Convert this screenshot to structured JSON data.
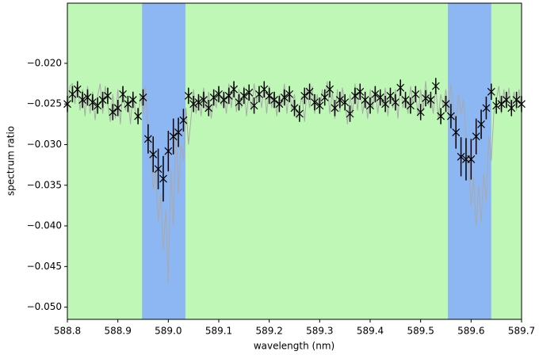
{
  "chart_data": {
    "type": "errorbar",
    "xlabel": "wavelength (nm)",
    "ylabel": "spectrum ratio",
    "xlim": [
      588.8,
      589.7
    ],
    "ylim": [
      -0.0515,
      -0.0126
    ],
    "xticks": [
      588.8,
      588.9,
      {
        "value": 589,
        "label": "589.0"
      },
      589.1,
      589.2,
      589.3,
      589.4,
      589.5,
      589.6,
      589.7
    ],
    "yticks": [
      {
        "value": -0.05,
        "label": "−0.050"
      },
      {
        "value": -0.045,
        "label": "−0.045"
      },
      {
        "value": -0.04,
        "label": "−0.040"
      },
      {
        "value": -0.035,
        "label": "−0.035"
      },
      {
        "value": -0.03,
        "label": "−0.030"
      },
      {
        "value": -0.025,
        "label": "−0.025"
      },
      {
        "value": -0.02,
        "label": "−0.020"
      }
    ],
    "background_color": "#bff7b7",
    "regions": [
      {
        "x": [
          588.948,
          589.034
        ],
        "color": "#8db7f3"
      },
      {
        "x": [
          589.554,
          589.64
        ],
        "color": "#8db7f3"
      }
    ],
    "series": [
      {
        "type": "line",
        "color": "#a9a9a9",
        "x": [
          588.8,
          588.805,
          588.81,
          588.815,
          588.82,
          588.825,
          588.83,
          588.835,
          588.84,
          588.845,
          588.85,
          588.855,
          588.86,
          588.865,
          588.87,
          588.875,
          588.88,
          588.885,
          588.89,
          588.895,
          588.9,
          588.905,
          588.91,
          588.915,
          588.92,
          588.925,
          588.93,
          588.935,
          588.94,
          588.945,
          588.95,
          588.955,
          588.96,
          588.965,
          588.97,
          588.975,
          588.98,
          588.985,
          588.99,
          588.995,
          589.0,
          589.005,
          589.01,
          589.015,
          589.02,
          589.025,
          589.03,
          589.035,
          589.04,
          589.045,
          589.05,
          589.055,
          589.06,
          589.065,
          589.07,
          589.075,
          589.08,
          589.085,
          589.09,
          589.095,
          589.1,
          589.105,
          589.11,
          589.115,
          589.12,
          589.125,
          589.13,
          589.135,
          589.14,
          589.145,
          589.15,
          589.155,
          589.16,
          589.165,
          589.17,
          589.175,
          589.18,
          589.185,
          589.19,
          589.195,
          589.2,
          589.205,
          589.21,
          589.215,
          589.22,
          589.225,
          589.23,
          589.235,
          589.24,
          589.245,
          589.25,
          589.255,
          589.26,
          589.265,
          589.27,
          589.275,
          589.28,
          589.285,
          589.29,
          589.295,
          589.3,
          589.305,
          589.31,
          589.315,
          589.32,
          589.325,
          589.33,
          589.335,
          589.34,
          589.345,
          589.35,
          589.355,
          589.36,
          589.365,
          589.37,
          589.375,
          589.38,
          589.385,
          589.39,
          589.395,
          589.4,
          589.405,
          589.41,
          589.415,
          589.42,
          589.425,
          589.43,
          589.435,
          589.44,
          589.445,
          589.45,
          589.455,
          589.46,
          589.465,
          589.47,
          589.475,
          589.48,
          589.485,
          589.49,
          589.495,
          589.5,
          589.505,
          589.51,
          589.515,
          589.52,
          589.525,
          589.53,
          589.535,
          589.54,
          589.545,
          589.55,
          589.555,
          589.56,
          589.565,
          589.57,
          589.575,
          589.58,
          589.585,
          589.59,
          589.595,
          589.6,
          589.605,
          589.61,
          589.615,
          589.62,
          589.625,
          589.63,
          589.635,
          589.64,
          589.645,
          589.65,
          589.655,
          589.66,
          589.665,
          589.67,
          589.675,
          589.68,
          589.685,
          589.69,
          589.695,
          589.7
        ],
        "values": [
          -0.0262,
          -0.0228,
          -0.0225,
          -0.025,
          -0.0222,
          -0.0258,
          -0.0232,
          -0.0265,
          -0.0228,
          -0.0262,
          -0.0235,
          -0.027,
          -0.024,
          -0.0225,
          -0.0262,
          -0.0228,
          -0.025,
          -0.0272,
          -0.0238,
          -0.0268,
          -0.0232,
          -0.0275,
          -0.0228,
          -0.0258,
          -0.0242,
          -0.0275,
          -0.0235,
          -0.026,
          -0.0272,
          -0.0238,
          -0.0262,
          -0.0228,
          -0.029,
          -0.03,
          -0.0355,
          -0.033,
          -0.0395,
          -0.036,
          -0.043,
          -0.038,
          -0.047,
          -0.033,
          -0.04,
          -0.028,
          -0.036,
          -0.03,
          -0.032,
          -0.0255,
          -0.03,
          -0.0268,
          -0.0232,
          -0.0262,
          -0.0238,
          -0.0265,
          -0.023,
          -0.0258,
          -0.0235,
          -0.0268,
          -0.024,
          -0.0255,
          -0.0228,
          -0.0252,
          -0.0236,
          -0.0262,
          -0.0225,
          -0.0255,
          -0.0222,
          -0.026,
          -0.0232,
          -0.0255,
          -0.0228,
          -0.0265,
          -0.0235,
          -0.0258,
          -0.0225,
          -0.0248,
          -0.023,
          -0.0255,
          -0.0228,
          -0.0262,
          -0.0228,
          -0.0255,
          -0.0235,
          -0.0265,
          -0.0238,
          -0.0252,
          -0.0225,
          -0.0262,
          -0.023,
          -0.0258,
          -0.0238,
          -0.0268,
          -0.0255,
          -0.024,
          -0.0272,
          -0.023,
          -0.0255,
          -0.0228,
          -0.0262,
          -0.0238,
          -0.0258,
          -0.0232,
          -0.0248,
          -0.0222,
          -0.0262,
          -0.0235,
          -0.0268,
          -0.0232,
          -0.026,
          -0.023,
          -0.0248,
          -0.0275,
          -0.0238,
          -0.0262,
          -0.0225,
          -0.0258,
          -0.0228,
          -0.0262,
          -0.024,
          -0.0268,
          -0.0232,
          -0.0255,
          -0.0228,
          -0.0262,
          -0.0235,
          -0.0252,
          -0.023,
          -0.0265,
          -0.0238,
          -0.0255,
          -0.0232,
          -0.0268,
          -0.0225,
          -0.0255,
          -0.0238,
          -0.0262,
          -0.0228,
          -0.025,
          -0.0235,
          -0.0265,
          -0.0232,
          -0.0258,
          -0.0222,
          -0.0252,
          -0.0238,
          -0.0262,
          -0.0228,
          -0.0268,
          -0.0238,
          -0.0255,
          -0.0232,
          -0.0262,
          -0.0225,
          -0.0258,
          -0.0275,
          -0.0238,
          -0.0262,
          -0.0245,
          -0.029,
          -0.032,
          -0.0375,
          -0.034,
          -0.04,
          -0.035,
          -0.0395,
          -0.0335,
          -0.037,
          -0.029,
          -0.032,
          -0.0262,
          -0.0245,
          -0.0228,
          -0.0262,
          -0.0232,
          -0.0255,
          -0.023,
          -0.0262,
          -0.0235,
          -0.0258,
          -0.0232,
          -0.0262
        ]
      },
      {
        "type": "errorbar",
        "color": "#000000",
        "x": [
          588.8,
          588.81,
          588.82,
          588.83,
          588.84,
          588.85,
          588.86,
          588.87,
          588.88,
          588.89,
          588.9,
          588.91,
          588.92,
          588.93,
          588.94,
          588.95,
          588.96,
          588.97,
          588.98,
          588.99,
          589.0,
          589.01,
          589.02,
          589.03,
          589.04,
          589.05,
          589.06,
          589.07,
          589.08,
          589.09,
          589.1,
          589.11,
          589.12,
          589.13,
          589.14,
          589.15,
          589.16,
          589.17,
          589.18,
          589.19,
          589.2,
          589.21,
          589.22,
          589.23,
          589.24,
          589.25,
          589.26,
          589.27,
          589.28,
          589.29,
          589.3,
          589.31,
          589.32,
          589.33,
          589.34,
          589.35,
          589.36,
          589.37,
          589.38,
          589.39,
          589.4,
          589.41,
          589.42,
          589.43,
          589.44,
          589.45,
          589.46,
          589.47,
          589.48,
          589.49,
          589.5,
          589.51,
          589.52,
          589.53,
          589.54,
          589.55,
          589.56,
          589.57,
          589.58,
          589.59,
          589.6,
          589.61,
          589.62,
          589.63,
          589.64,
          589.65,
          589.66,
          589.67,
          589.68,
          589.69,
          589.7
        ],
        "values": [
          -0.025,
          -0.0238,
          -0.0232,
          -0.0245,
          -0.0242,
          -0.0248,
          -0.0252,
          -0.0245,
          -0.024,
          -0.026,
          -0.0255,
          -0.0238,
          -0.025,
          -0.0245,
          -0.0265,
          -0.0242,
          -0.0293,
          -0.0312,
          -0.033,
          -0.0342,
          -0.0308,
          -0.029,
          -0.0285,
          -0.027,
          -0.024,
          -0.025,
          -0.0248,
          -0.0245,
          -0.0255,
          -0.0242,
          -0.0238,
          -0.0245,
          -0.024,
          -0.0232,
          -0.0248,
          -0.024,
          -0.0236,
          -0.0252,
          -0.0238,
          -0.0232,
          -0.024,
          -0.0245,
          -0.025,
          -0.0242,
          -0.0238,
          -0.0255,
          -0.0262,
          -0.024,
          -0.0235,
          -0.0248,
          -0.0252,
          -0.0242,
          -0.0232,
          -0.0255,
          -0.0245,
          -0.0248,
          -0.0262,
          -0.024,
          -0.0235,
          -0.0245,
          -0.0252,
          -0.0238,
          -0.0242,
          -0.025,
          -0.024,
          -0.0248,
          -0.023,
          -0.0245,
          -0.0252,
          -0.0238,
          -0.026,
          -0.0243,
          -0.0245,
          -0.0228,
          -0.0265,
          -0.025,
          -0.0265,
          -0.0285,
          -0.0315,
          -0.0318,
          -0.0318,
          -0.029,
          -0.0275,
          -0.0255,
          -0.0235,
          -0.0252,
          -0.025,
          -0.0245,
          -0.0255,
          -0.0245,
          -0.025
        ],
        "errors": [
          0.001,
          0.001,
          0.001,
          0.001,
          0.001,
          0.001,
          0.001,
          0.001,
          0.001,
          0.001,
          0.001,
          0.001,
          0.001,
          0.001,
          0.001,
          0.001,
          0.0018,
          0.0022,
          0.0025,
          0.0028,
          0.0025,
          0.0022,
          0.0018,
          0.0014,
          0.001,
          0.001,
          0.001,
          0.001,
          0.001,
          0.001,
          0.001,
          0.001,
          0.001,
          0.001,
          0.001,
          0.001,
          0.001,
          0.001,
          0.001,
          0.001,
          0.001,
          0.001,
          0.001,
          0.001,
          0.001,
          0.001,
          0.001,
          0.001,
          0.001,
          0.001,
          0.001,
          0.001,
          0.001,
          0.001,
          0.001,
          0.001,
          0.001,
          0.001,
          0.001,
          0.001,
          0.001,
          0.001,
          0.001,
          0.001,
          0.001,
          0.001,
          0.001,
          0.001,
          0.001,
          0.001,
          0.001,
          0.001,
          0.001,
          0.001,
          0.001,
          0.001,
          0.0015,
          0.002,
          0.0024,
          0.0026,
          0.0025,
          0.0022,
          0.0018,
          0.0014,
          0.001,
          0.001,
          0.001,
          0.001,
          0.001,
          0.001,
          0.001
        ]
      }
    ]
  }
}
